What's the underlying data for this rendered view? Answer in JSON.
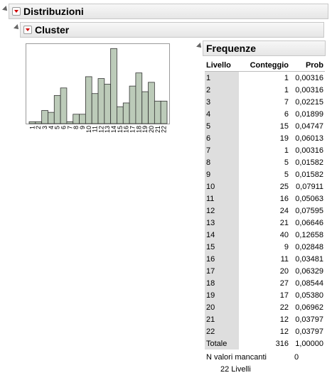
{
  "distribuzioni": {
    "title": "Distribuzioni"
  },
  "cluster": {
    "title": "Cluster"
  },
  "frequenze": {
    "title": "Frequenze",
    "columns": [
      "Livello",
      "Conteggio",
      "Prob"
    ],
    "rows": [
      {
        "level": "1",
        "count": "1",
        "prob": "0,00316"
      },
      {
        "level": "2",
        "count": "1",
        "prob": "0,00316"
      },
      {
        "level": "3",
        "count": "7",
        "prob": "0,02215"
      },
      {
        "level": "4",
        "count": "6",
        "prob": "0,01899"
      },
      {
        "level": "5",
        "count": "15",
        "prob": "0,04747"
      },
      {
        "level": "6",
        "count": "19",
        "prob": "0,06013"
      },
      {
        "level": "7",
        "count": "1",
        "prob": "0,00316"
      },
      {
        "level": "8",
        "count": "5",
        "prob": "0,01582"
      },
      {
        "level": "9",
        "count": "5",
        "prob": "0,01582"
      },
      {
        "level": "10",
        "count": "25",
        "prob": "0,07911"
      },
      {
        "level": "11",
        "count": "16",
        "prob": "0,05063"
      },
      {
        "level": "12",
        "count": "24",
        "prob": "0,07595"
      },
      {
        "level": "13",
        "count": "21",
        "prob": "0,06646"
      },
      {
        "level": "14",
        "count": "40",
        "prob": "0,12658"
      },
      {
        "level": "15",
        "count": "9",
        "prob": "0,02848"
      },
      {
        "level": "16",
        "count": "11",
        "prob": "0,03481"
      },
      {
        "level": "17",
        "count": "20",
        "prob": "0,06329"
      },
      {
        "level": "18",
        "count": "27",
        "prob": "0,08544"
      },
      {
        "level": "19",
        "count": "17",
        "prob": "0,05380"
      },
      {
        "level": "20",
        "count": "22",
        "prob": "0,06962"
      },
      {
        "level": "21",
        "count": "12",
        "prob": "0,03797"
      },
      {
        "level": "22",
        "count": "12",
        "prob": "0,03797"
      }
    ],
    "total": {
      "label": "Totale",
      "count": "316",
      "prob": "1,00000"
    },
    "missing_label": "N valori mancanti",
    "missing_value": "0",
    "levels_text": "22  Livelli"
  },
  "chart_data": {
    "type": "bar",
    "categories": [
      "1",
      "2",
      "3",
      "4",
      "5",
      "6",
      "7",
      "8",
      "9",
      "10",
      "11",
      "12",
      "13",
      "14",
      "15",
      "16",
      "17",
      "18",
      "19",
      "20",
      "21",
      "22"
    ],
    "values": [
      1,
      1,
      7,
      6,
      15,
      19,
      1,
      5,
      5,
      25,
      16,
      24,
      21,
      40,
      9,
      11,
      20,
      27,
      17,
      22,
      12,
      12
    ],
    "ylim": [
      0,
      42
    ],
    "bar_color": "#bccbb9",
    "bar_stroke": "#333333",
    "grid": false
  }
}
